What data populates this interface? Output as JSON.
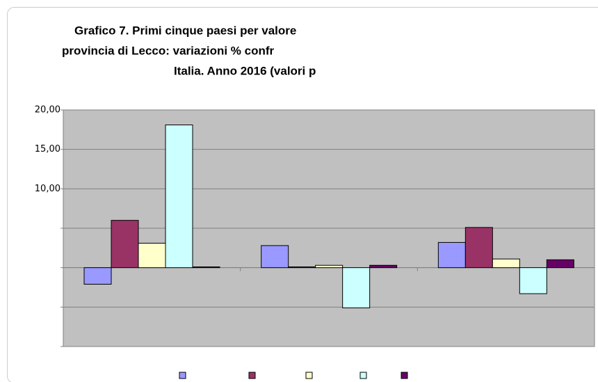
{
  "chart_data": {
    "type": "bar",
    "title_lines": [
      "Grafico 7. Primi cinque paesi per valore",
      "provincia di Lecco: variazioni % confr",
      "Italia.  Anno 2016 (valori p"
    ],
    "categories": [
      null,
      null,
      null
    ],
    "series": [
      {
        "color": "#9999ff",
        "values": [
          -2.1,
          2.8,
          3.2
        ]
      },
      {
        "color": "#993366",
        "values": [
          6.0,
          0.1,
          5.1
        ]
      },
      {
        "color": "#ffffcc",
        "values": [
          3.1,
          0.3,
          1.1
        ]
      },
      {
        "color": "#ccffff",
        "values": [
          18.1,
          -5.1,
          -3.3
        ]
      },
      {
        "color": "#660066",
        "values": [
          0.1,
          0.3,
          1.0
        ]
      }
    ],
    "ylim": [
      -10,
      20
    ],
    "yticks": [
      {
        "value": -10,
        "label": null
      },
      {
        "value": -5,
        "label": null
      },
      {
        "value": 0,
        "label": null
      },
      {
        "value": 5,
        "label": null
      },
      {
        "value": 10,
        "label": "10,00"
      },
      {
        "value": 15,
        "label": "15,00"
      },
      {
        "value": 20,
        "label": "20,00"
      }
    ],
    "grid": true,
    "plot_background": "#c0c0c0"
  }
}
